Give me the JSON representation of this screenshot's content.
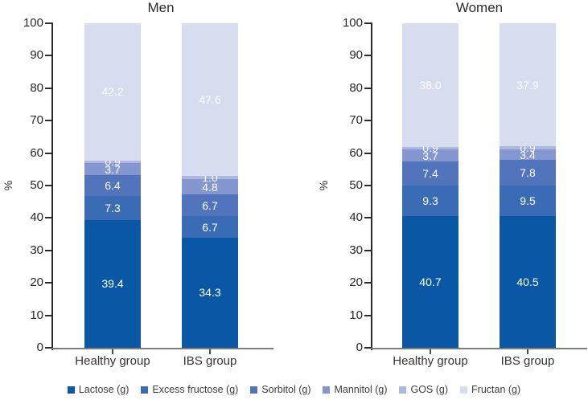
{
  "figure": {
    "background": "#ffffff"
  },
  "chart_data": [
    {
      "type": "bar",
      "stacked": true,
      "title": "Men",
      "xlabel": "",
      "ylabel": "%",
      "ylim": [
        0,
        100
      ],
      "yticks": [
        0,
        10,
        20,
        30,
        40,
        50,
        60,
        70,
        80,
        90,
        100
      ],
      "grid": false,
      "legend_position": "bottom",
      "categories": [
        "Healthy group",
        "IBS group"
      ],
      "series": [
        {
          "name": "Lactose (g)",
          "color": "#0a57a5",
          "values": [
            39.4,
            34.3
          ],
          "labels": [
            "39.4",
            "34.3"
          ]
        },
        {
          "name": "Excess fructose (g)",
          "color": "#3a6cb5",
          "values": [
            7.3,
            6.7
          ],
          "labels": [
            "7.3",
            "6.7"
          ]
        },
        {
          "name": "Sorbitol (g)",
          "color": "#5174bc",
          "values": [
            6.4,
            6.7
          ],
          "labels": [
            "6.4",
            "6.7"
          ]
        },
        {
          "name": "Mannitol (g)",
          "color": "#8497d0",
          "values": [
            3.7,
            4.8
          ],
          "labels": [
            "3.7",
            "4.8"
          ]
        },
        {
          "name": "GOS (g)",
          "color": "#acb8e0",
          "values": [
            0.9,
            1.0
          ],
          "labels": [
            "0.9",
            "1.0"
          ]
        },
        {
          "name": "Fructan (g)",
          "color": "#d8dcef",
          "values": [
            42.2,
            47.6
          ],
          "labels": [
            "42.2",
            "47.6"
          ]
        }
      ]
    },
    {
      "type": "bar",
      "stacked": true,
      "title": "Women",
      "xlabel": "",
      "ylabel": "%",
      "ylim": [
        0,
        100
      ],
      "yticks": [
        0,
        10,
        20,
        30,
        40,
        50,
        60,
        70,
        80,
        90,
        100
      ],
      "grid": false,
      "legend_position": "bottom",
      "categories": [
        "Healthy group",
        "IBS group"
      ],
      "series": [
        {
          "name": "Lactose (g)",
          "color": "#0a57a5",
          "values": [
            40.7,
            40.5
          ],
          "labels": [
            "40.7",
            "40.5"
          ]
        },
        {
          "name": "Excess fructose (g)",
          "color": "#3a6cb5",
          "values": [
            9.3,
            9.5
          ],
          "labels": [
            "9.3",
            "9.5"
          ]
        },
        {
          "name": "Sorbitol (g)",
          "color": "#5174bc",
          "values": [
            7.4,
            7.8
          ],
          "labels": [
            "7.4",
            "7.8"
          ]
        },
        {
          "name": "Mannitol (g)",
          "color": "#8497d0",
          "values": [
            3.7,
            3.4
          ],
          "labels": [
            "3.7",
            "3.4"
          ]
        },
        {
          "name": "GOS (g)",
          "color": "#acb8e0",
          "values": [
            0.9,
            0.9
          ],
          "labels": [
            "0.9",
            "0.9"
          ]
        },
        {
          "name": "Fructan (g)",
          "color": "#d8dcef",
          "values": [
            38.0,
            37.9
          ],
          "labels": [
            "38.0",
            "37.9"
          ]
        }
      ]
    }
  ],
  "legend": {
    "items": [
      {
        "label": "Lactose (g)",
        "color": "#0a57a5"
      },
      {
        "label": "Excess fructose (g)",
        "color": "#3a6cb5"
      },
      {
        "label": "Sorbitol (g)",
        "color": "#5174bc"
      },
      {
        "label": "Mannitol (g)",
        "color": "#8497d0"
      },
      {
        "label": "GOS (g)",
        "color": "#acb8e0"
      },
      {
        "label": "Fructan (g)",
        "color": "#d8dcef"
      }
    ]
  }
}
